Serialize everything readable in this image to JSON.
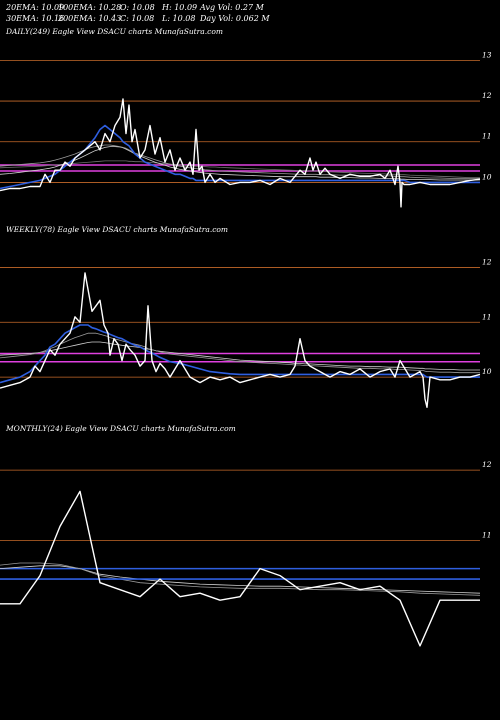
{
  "header": {
    "row1": [
      "20EMA: 10.09",
      "100EMA: 10.28",
      "O: 10.08",
      "H: 10.09",
      "Avg Vol: 0.27 M"
    ],
    "row2": [
      "30EMA: 10.16",
      "200EMA: 10.43",
      "C: 10.08",
      "L: 10.08",
      "Day Vol: 0.062 M"
    ]
  },
  "colors": {
    "background": "#000000",
    "price": "#ffffff",
    "ema_blue": "#2f5fe0",
    "magenta": "#e040e0",
    "grid": "#c66a2a",
    "gray_ema": "#9a9a9a"
  },
  "chart_data": [
    {
      "type": "line",
      "title": "DAILY(249) Eagle   View  DSACU charts MunafaSutra.com",
      "yticks": [
        10,
        11,
        12,
        13
      ],
      "ylim": [
        9.2,
        13.5
      ],
      "x": [
        0,
        10,
        20,
        30,
        40,
        45,
        50,
        55,
        60,
        65,
        70,
        75,
        80,
        85,
        90,
        95,
        100,
        105,
        110,
        115,
        120,
        123,
        126,
        129,
        132,
        135,
        140,
        145,
        150,
        155,
        160,
        165,
        170,
        175,
        180,
        185,
        190,
        193,
        196,
        199,
        202,
        205,
        210,
        215,
        220,
        230,
        240,
        250,
        260,
        270,
        280,
        290,
        300,
        305,
        310,
        313,
        316,
        320,
        325,
        330,
        340,
        350,
        360,
        370,
        380,
        385,
        390,
        395,
        398,
        400,
        401,
        402,
        404,
        410,
        420,
        430,
        440,
        450,
        460,
        470,
        480
      ],
      "series": [
        {
          "values": [
            9.8,
            9.85,
            9.85,
            9.9,
            9.9,
            10.2,
            10.0,
            10.3,
            10.3,
            10.5,
            10.4,
            10.6,
            10.7,
            10.8,
            10.9,
            11.0,
            10.8,
            11.2,
            11.0,
            11.4,
            11.6,
            12.05,
            11.2,
            11.9,
            11.0,
            11.3,
            10.6,
            10.8,
            11.4,
            10.7,
            11.1,
            10.5,
            10.8,
            10.3,
            10.6,
            10.3,
            10.5,
            10.2,
            11.3,
            10.3,
            10.4,
            10.0,
            10.2,
            10.0,
            10.1,
            9.95,
            10.0,
            10.0,
            10.05,
            9.95,
            10.1,
            10.0,
            10.3,
            10.2,
            10.6,
            10.3,
            10.5,
            10.2,
            10.35,
            10.2,
            10.1,
            10.2,
            10.15,
            10.15,
            10.2,
            10.1,
            10.3,
            9.95,
            10.4,
            10.0,
            9.4,
            10.0,
            9.95,
            9.95,
            10.0,
            9.95,
            9.95,
            9.95,
            10.0,
            10.05,
            10.08
          ]
        },
        {
          "values": [
            9.85,
            9.9,
            9.95,
            10.0,
            10.05,
            10.1,
            10.15,
            10.2,
            10.3,
            10.4,
            10.5,
            10.6,
            10.7,
            10.8,
            10.95,
            11.1,
            11.3,
            11.4,
            11.3,
            11.2,
            11.1,
            11.0,
            10.95,
            10.9,
            10.8,
            10.7,
            10.6,
            10.5,
            10.45,
            10.4,
            10.35,
            10.3,
            10.25,
            10.2,
            10.2,
            10.15,
            10.1,
            10.1,
            10.05,
            10.05,
            10.05,
            10.05,
            10.05,
            10.05,
            10.05,
            10.05,
            10.05,
            10.05,
            10.05,
            10.05,
            10.05,
            10.05,
            10.05,
            10.05,
            10.05,
            10.05,
            10.05,
            10.05,
            10.05,
            10.05,
            10.05,
            10.05,
            10.05,
            10.05,
            10.05,
            10.05,
            10.05,
            10.05,
            10.05,
            10.05,
            10.05,
            10.05,
            10.05,
            10.0,
            10.0,
            10.0,
            10.0,
            10.0,
            10.0,
            10.0,
            10.0
          ]
        },
        {
          "values": [
            10.4,
            10.42,
            10.44,
            10.46,
            10.48,
            10.5,
            10.52,
            10.55,
            10.58,
            10.62,
            10.66,
            10.7,
            10.75,
            10.8,
            10.85,
            10.88,
            10.9,
            10.92,
            10.92,
            10.9,
            10.88,
            10.86,
            10.84,
            10.8,
            10.76,
            10.72,
            10.68,
            10.64,
            10.6,
            10.56,
            10.52,
            10.48,
            10.45,
            10.42,
            10.4,
            10.38,
            10.36,
            10.35,
            10.34,
            10.33,
            10.32,
            10.31,
            10.3,
            10.29,
            10.28,
            10.27,
            10.26,
            10.25,
            10.24,
            10.23,
            10.22,
            10.21,
            10.2,
            10.2,
            10.2,
            10.2,
            10.2,
            10.19,
            10.19,
            10.19,
            10.18,
            10.18,
            10.17,
            10.17,
            10.16,
            10.16,
            10.16,
            10.15,
            10.15,
            10.15,
            10.14,
            10.14,
            10.14,
            10.13,
            10.12,
            10.11,
            10.11,
            10.1,
            10.1,
            10.1,
            10.1
          ]
        },
        {
          "values": [
            10.2,
            10.22,
            10.25,
            10.28,
            10.31,
            10.33,
            10.35,
            10.38,
            10.42,
            10.46,
            10.5,
            10.55,
            10.6,
            10.66,
            10.72,
            10.78,
            10.82,
            10.86,
            10.88,
            10.88,
            10.87,
            10.85,
            10.82,
            10.78,
            10.74,
            10.7,
            10.65,
            10.6,
            10.55,
            10.5,
            10.46,
            10.42,
            10.38,
            10.35,
            10.32,
            10.3,
            10.28,
            10.27,
            10.26,
            10.25,
            10.24,
            10.23,
            10.22,
            10.21,
            10.2,
            10.19,
            10.18,
            10.17,
            10.16,
            10.15,
            10.14,
            10.14,
            10.14,
            10.14,
            10.14,
            10.14,
            10.14,
            10.13,
            10.13,
            10.13,
            10.12,
            10.12,
            10.11,
            10.11,
            10.1,
            10.1,
            10.1,
            10.09,
            10.09,
            10.09,
            10.08,
            10.08,
            10.08,
            10.07,
            10.07,
            10.07,
            10.06,
            10.06,
            10.06,
            10.06,
            10.06
          ]
        },
        {
          "values": [
            10.36,
            10.37,
            10.38,
            10.39,
            10.4,
            10.41,
            10.42,
            10.43,
            10.44,
            10.45,
            10.46,
            10.47,
            10.48,
            10.49,
            10.5,
            10.51,
            10.52,
            10.53,
            10.53,
            10.53,
            10.53,
            10.53,
            10.53,
            10.52,
            10.52,
            10.51,
            10.51,
            10.5,
            10.49,
            10.48,
            10.47,
            10.46,
            10.45,
            10.44,
            10.43,
            10.42,
            10.41,
            10.41,
            10.4,
            10.4,
            10.39,
            10.39,
            10.38,
            10.38,
            10.37,
            10.36,
            10.35,
            10.34,
            10.33,
            10.32,
            10.31,
            10.3,
            10.29,
            10.29,
            10.28,
            10.28,
            10.28,
            10.27,
            10.27,
            10.26,
            10.25,
            10.24,
            10.23,
            10.22,
            10.21,
            10.21,
            10.2,
            10.2,
            10.2,
            10.19,
            10.19,
            10.19,
            10.19,
            10.18,
            10.17,
            10.16,
            10.15,
            10.14,
            10.13,
            10.12,
            10.12
          ]
        }
      ],
      "hlines": [
        10.28,
        10.43
      ],
      "grid": true
    },
    {
      "type": "line",
      "title": "WEEKLY(78) Eagle   View  DSACU charts MunafaSutra.com",
      "yticks": [
        10,
        11,
        12
      ],
      "ylim": [
        9.4,
        12.5
      ],
      "x": [
        0,
        10,
        20,
        30,
        35,
        40,
        45,
        50,
        55,
        60,
        65,
        70,
        75,
        80,
        85,
        88,
        92,
        96,
        100,
        104,
        108,
        110,
        114,
        118,
        122,
        126,
        130,
        135,
        140,
        145,
        148,
        152,
        156,
        160,
        165,
        170,
        180,
        190,
        200,
        210,
        220,
        230,
        240,
        250,
        260,
        270,
        280,
        290,
        295,
        300,
        305,
        310,
        320,
        330,
        340,
        350,
        360,
        370,
        380,
        390,
        395,
        400,
        410,
        420,
        423,
        425,
        427,
        430,
        440,
        450,
        460,
        470,
        480
      ],
      "series": [
        {
          "values": [
            9.8,
            9.85,
            9.9,
            10.0,
            10.2,
            10.1,
            10.3,
            10.5,
            10.4,
            10.6,
            10.7,
            10.8,
            11.1,
            11.0,
            11.9,
            11.6,
            11.2,
            11.3,
            11.4,
            10.95,
            10.8,
            10.4,
            10.7,
            10.6,
            10.3,
            10.6,
            10.5,
            10.4,
            10.2,
            10.3,
            11.3,
            10.3,
            10.1,
            10.25,
            10.15,
            10.0,
            10.3,
            10.0,
            9.9,
            10.0,
            9.95,
            10.0,
            9.9,
            9.95,
            10.0,
            10.05,
            10.0,
            10.05,
            10.2,
            10.7,
            10.3,
            10.2,
            10.1,
            10.0,
            10.1,
            10.05,
            10.15,
            10.0,
            10.1,
            10.15,
            10.0,
            10.3,
            10.0,
            10.1,
            10.0,
            9.6,
            9.45,
            10.0,
            9.95,
            9.95,
            10.0,
            10.0,
            10.05
          ]
        },
        {
          "values": [
            9.9,
            9.95,
            10.0,
            10.1,
            10.2,
            10.3,
            10.4,
            10.55,
            10.6,
            10.7,
            10.8,
            10.85,
            10.9,
            10.95,
            10.95,
            10.95,
            10.9,
            10.88,
            10.85,
            10.82,
            10.8,
            10.78,
            10.75,
            10.72,
            10.7,
            10.66,
            10.62,
            10.58,
            10.55,
            10.5,
            10.47,
            10.44,
            10.4,
            10.36,
            10.32,
            10.28,
            10.25,
            10.2,
            10.15,
            10.1,
            10.08,
            10.06,
            10.05,
            10.05,
            10.05,
            10.05,
            10.05,
            10.05,
            10.05,
            10.05,
            10.05,
            10.05,
            10.05,
            10.05,
            10.05,
            10.05,
            10.05,
            10.05,
            10.05,
            10.05,
            10.05,
            10.05,
            10.05,
            10.05,
            10.05,
            10.02,
            10.0,
            10.0,
            10.0,
            10.0,
            10.0,
            10.0,
            10.0
          ]
        },
        {
          "values": [
            10.35,
            10.37,
            10.39,
            10.41,
            10.43,
            10.45,
            10.48,
            10.52,
            10.55,
            10.6,
            10.64,
            10.68,
            10.72,
            10.75,
            10.78,
            10.8,
            10.8,
            10.8,
            10.78,
            10.76,
            10.74,
            10.72,
            10.7,
            10.68,
            10.66,
            10.64,
            10.62,
            10.6,
            10.58,
            10.55,
            10.52,
            10.5,
            10.48,
            10.46,
            10.44,
            10.42,
            10.4,
            10.38,
            10.36,
            10.34,
            10.32,
            10.3,
            10.28,
            10.27,
            10.26,
            10.25,
            10.24,
            10.23,
            10.22,
            10.22,
            10.21,
            10.21,
            10.2,
            10.19,
            10.18,
            10.17,
            10.16,
            10.16,
            10.15,
            10.15,
            10.14,
            10.14,
            10.13,
            10.12,
            10.12,
            10.11,
            10.1,
            10.1,
            10.09,
            10.09,
            10.08,
            10.08,
            10.08
          ]
        },
        {
          "values": [
            10.4,
            10.41,
            10.42,
            10.43,
            10.44,
            10.45,
            10.46,
            10.48,
            10.5,
            10.52,
            10.54,
            10.56,
            10.58,
            10.6,
            10.62,
            10.63,
            10.64,
            10.64,
            10.64,
            10.63,
            10.62,
            10.61,
            10.6,
            10.59,
            10.58,
            10.57,
            10.56,
            10.55,
            10.54,
            10.52,
            10.51,
            10.5,
            10.48,
            10.47,
            10.46,
            10.45,
            10.43,
            10.41,
            10.39,
            10.37,
            10.35,
            10.33,
            10.31,
            10.3,
            10.29,
            10.28,
            10.27,
            10.26,
            10.25,
            10.25,
            10.24,
            10.24,
            10.23,
            10.22,
            10.21,
            10.2,
            10.2,
            10.19,
            10.19,
            10.18,
            10.18,
            10.18,
            10.17,
            10.16,
            10.16,
            10.15,
            10.15,
            10.15,
            10.14,
            10.14,
            10.13,
            10.13,
            10.13
          ]
        }
      ],
      "hlines": [
        10.28,
        10.43
      ],
      "grid": true
    },
    {
      "type": "line",
      "title": "MONTHLY(24) Eagle   View  DSACU charts MunafaSutra.com",
      "yticks": [
        11,
        12
      ],
      "ylim": [
        9.3,
        12.5
      ],
      "x": [
        0,
        20,
        40,
        60,
        80,
        100,
        120,
        140,
        160,
        180,
        200,
        220,
        240,
        260,
        280,
        300,
        320,
        340,
        360,
        380,
        400,
        420,
        440,
        460,
        480
      ],
      "series": [
        {
          "values": [
            10.1,
            10.1,
            10.5,
            11.2,
            11.7,
            10.4,
            10.3,
            10.2,
            10.45,
            10.2,
            10.25,
            10.15,
            10.2,
            10.6,
            10.5,
            10.3,
            10.35,
            10.4,
            10.3,
            10.35,
            10.15,
            9.5,
            10.15,
            10.15,
            10.15
          ]
        },
        {
          "values": [
            10.45,
            10.45,
            10.45,
            10.45,
            10.45,
            10.45,
            10.45,
            10.45,
            10.45,
            10.45,
            10.45,
            10.45,
            10.45,
            10.45,
            10.45,
            10.45,
            10.45,
            10.45,
            10.45,
            10.45,
            10.45,
            10.45,
            10.45,
            10.45,
            10.45
          ]
        },
        {
          "values": [
            10.65,
            10.68,
            10.68,
            10.66,
            10.6,
            10.5,
            10.45,
            10.4,
            10.38,
            10.36,
            10.34,
            10.33,
            10.32,
            10.32,
            10.32,
            10.31,
            10.3,
            10.3,
            10.29,
            10.28,
            10.27,
            10.25,
            10.24,
            10.23,
            10.22
          ]
        },
        {
          "values": [
            10.6,
            10.62,
            10.64,
            10.64,
            10.6,
            10.52,
            10.48,
            10.45,
            10.42,
            10.4,
            10.38,
            10.37,
            10.36,
            10.35,
            10.35,
            10.34,
            10.33,
            10.32,
            10.31,
            10.3,
            10.29,
            10.28,
            10.27,
            10.26,
            10.25
          ]
        }
      ],
      "hlines": [
        10.6
      ],
      "grid": true
    }
  ]
}
